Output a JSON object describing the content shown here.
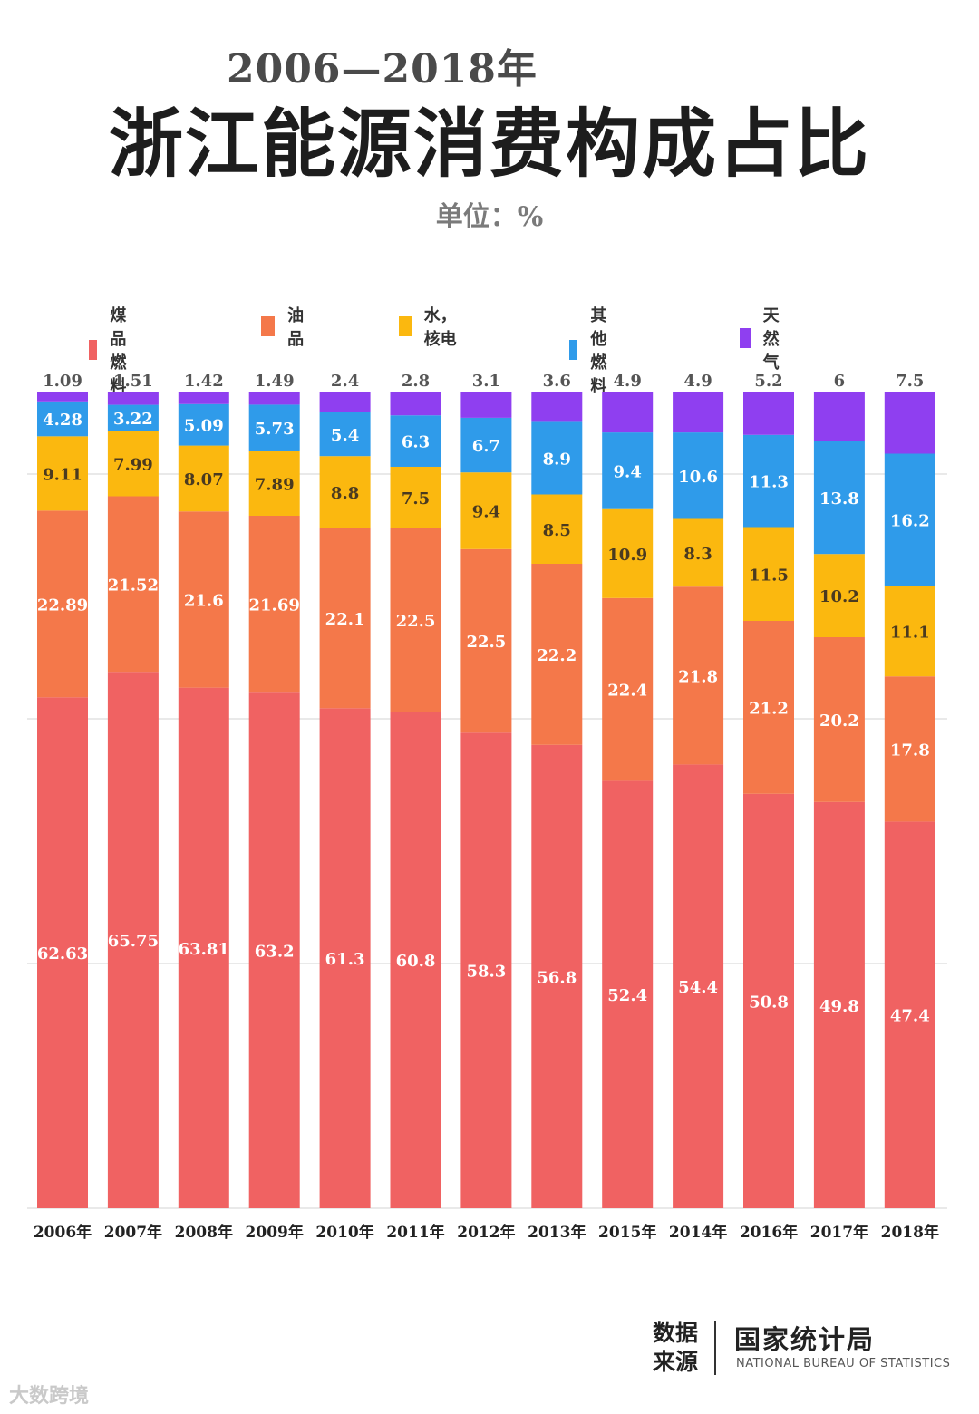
{
  "header": {
    "years": "2006—2018年",
    "title": "浙江能源消费构成占比",
    "unit": "单位：%"
  },
  "chart_data": {
    "type": "bar",
    "stacked": true,
    "categories": [
      "2006年",
      "2007年",
      "2008年",
      "2009年",
      "2010年",
      "2011年",
      "2012年",
      "2013年",
      "2015年",
      "2014年",
      "2016年",
      "2017年",
      "2018年"
    ],
    "series": [
      {
        "name": "煤品燃料",
        "color": "#f06262",
        "values": [
          62.63,
          65.75,
          63.81,
          63.2,
          61.3,
          60.8,
          58.3,
          56.8,
          52.4,
          54.4,
          50.8,
          49.8,
          47.4
        ],
        "labels": [
          "62.63",
          "65.75",
          "63.81",
          "63.2",
          "61.3",
          "60.8",
          "58.3",
          "56.8",
          "52.4",
          "54.4",
          "50.8",
          "49.8",
          "47.4"
        ]
      },
      {
        "name": "油品",
        "color": "#f4784a",
        "values": [
          22.89,
          21.52,
          21.6,
          21.69,
          22.1,
          22.5,
          22.5,
          22.2,
          22.4,
          21.8,
          21.2,
          20.2,
          17.8
        ],
        "labels": [
          "22.89",
          "21.52",
          "21.6",
          "21.69",
          "22.1",
          "22.5",
          "22.5",
          "22.2",
          "22.4",
          "21.8",
          "21.2",
          "20.2",
          "17.8"
        ]
      },
      {
        "name": "水，核电",
        "color": "#fbb80f",
        "values": [
          9.11,
          7.99,
          8.07,
          7.89,
          8.8,
          7.5,
          9.4,
          8.5,
          10.9,
          8.3,
          11.5,
          10.2,
          11.1
        ],
        "labels": [
          "9.11",
          "7.99",
          "8.07",
          "7.89",
          "8.8",
          "7.5",
          "9.4",
          "8.5",
          "10.9",
          "8.3",
          "11.5",
          "10.2",
          "11.1"
        ]
      },
      {
        "name": "其他燃料",
        "color": "#2f9bea",
        "values": [
          4.28,
          3.22,
          5.09,
          5.73,
          5.4,
          6.3,
          6.7,
          8.9,
          9.4,
          10.6,
          11.3,
          13.8,
          16.2
        ],
        "labels": [
          "4.28",
          "3.22",
          "5.09",
          "5.73",
          "5.4",
          "6.3",
          "6.7",
          "8.9",
          "9.4",
          "10.6",
          "11.3",
          "13.8",
          "16.2"
        ]
      },
      {
        "name": "天然气",
        "color": "#8f3ff0",
        "values": [
          1.09,
          1.51,
          1.42,
          1.49,
          2.4,
          2.8,
          3.1,
          3.6,
          4.9,
          4.9,
          5.2,
          6,
          7.5
        ],
        "labels": [
          "1.09",
          "1.51",
          "1.42",
          "1.49",
          "2.4",
          "2.8",
          "3.1",
          "3.6",
          "4.9",
          "4.9",
          "5.2",
          "6",
          "7.5"
        ]
      }
    ],
    "ylim": [
      0,
      100
    ],
    "grid": true,
    "legend_position": "top"
  },
  "source": {
    "label": "数据来源",
    "org": "国家统计局",
    "org_en": "NATIONAL BUREAU OF STATISTICS"
  },
  "watermark": "大数跨境"
}
